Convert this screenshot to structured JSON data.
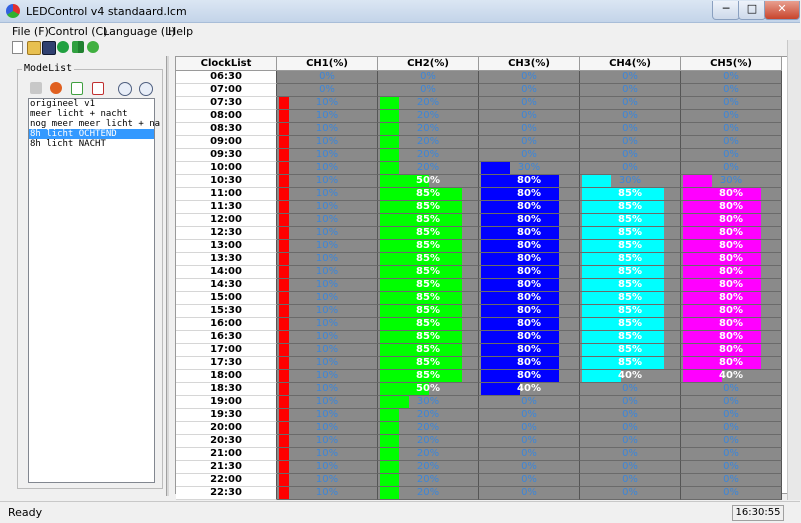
{
  "window": {
    "title": "LEDControl v4 standaard.lcm",
    "min_label": "─",
    "max_label": "□",
    "close_label": "✕"
  },
  "menu": {
    "items": [
      "File (F)",
      "Control (C)",
      "Language (L)",
      "Help"
    ]
  },
  "toolbar": {
    "icons": [
      "new-icon",
      "open-icon",
      "save-icon",
      "play-icon",
      "sync-icon",
      "info-icon"
    ]
  },
  "modelist": {
    "label": "ModeList",
    "buttons": [
      "copy-icon",
      "delete-icon",
      "import-icon",
      "export-icon",
      "move-up-icon",
      "move-down-icon"
    ],
    "items": [
      "origineel v1",
      "meer licht + nacht",
      "nog meer meer licht + na",
      "8h licht OCHTEND",
      "8h licht NACHT"
    ],
    "selected_index": 3
  },
  "grid": {
    "time_header": "ClockList",
    "channels": [
      {
        "name": "CH1(%)",
        "color": "#ff0000"
      },
      {
        "name": "CH2(%)",
        "color": "#00ff00"
      },
      {
        "name": "CH3(%)",
        "color": "#0000ff"
      },
      {
        "name": "CH4(%)",
        "color": "#00ffff"
      },
      {
        "name": "CH5(%)",
        "color": "#ff00ff"
      }
    ],
    "rows": [
      {
        "time": "06:30",
        "cells": [
          {
            "v": 0,
            "t": "0%"
          },
          {
            "v": 0,
            "t": "0%"
          },
          {
            "v": 0,
            "t": "0%"
          },
          {
            "v": 0,
            "t": "0%"
          },
          {
            "v": 0,
            "t": "0%"
          }
        ]
      },
      {
        "time": "07:00",
        "cells": [
          {
            "v": 0,
            "t": "0%"
          },
          {
            "v": 0,
            "t": "0%"
          },
          {
            "v": 0,
            "t": "0%"
          },
          {
            "v": 0,
            "t": "0%"
          },
          {
            "v": 0,
            "t": "0%"
          }
        ]
      },
      {
        "time": "07:30",
        "cells": [
          {
            "v": 10,
            "t": "10%"
          },
          {
            "v": 20,
            "t": "20%"
          },
          {
            "v": 0,
            "t": "0%"
          },
          {
            "v": 0,
            "t": "0%"
          },
          {
            "v": 0,
            "t": "0%"
          }
        ]
      },
      {
        "time": "08:00",
        "cells": [
          {
            "v": 10,
            "t": "10%"
          },
          {
            "v": 20,
            "t": "20%"
          },
          {
            "v": 0,
            "t": "0%"
          },
          {
            "v": 0,
            "t": "0%"
          },
          {
            "v": 0,
            "t": "0%"
          }
        ]
      },
      {
        "time": "08:30",
        "cells": [
          {
            "v": 10,
            "t": "10%"
          },
          {
            "v": 20,
            "t": "20%"
          },
          {
            "v": 0,
            "t": "0%"
          },
          {
            "v": 0,
            "t": "0%"
          },
          {
            "v": 0,
            "t": "0%"
          }
        ]
      },
      {
        "time": "09:00",
        "cells": [
          {
            "v": 10,
            "t": "10%"
          },
          {
            "v": 20,
            "t": "20%"
          },
          {
            "v": 0,
            "t": "0%"
          },
          {
            "v": 0,
            "t": "0%"
          },
          {
            "v": 0,
            "t": "0%"
          }
        ]
      },
      {
        "time": "09:30",
        "cells": [
          {
            "v": 10,
            "t": "10%"
          },
          {
            "v": 20,
            "t": "20%"
          },
          {
            "v": 0,
            "t": "0%"
          },
          {
            "v": 0,
            "t": "0%"
          },
          {
            "v": 0,
            "t": "0%"
          }
        ]
      },
      {
        "time": "10:00",
        "cells": [
          {
            "v": 10,
            "t": "10%"
          },
          {
            "v": 20,
            "t": "20%"
          },
          {
            "v": 30,
            "t": "30%"
          },
          {
            "v": 0,
            "t": "0%"
          },
          {
            "v": 0,
            "t": "0%"
          }
        ]
      },
      {
        "time": "10:30",
        "cells": [
          {
            "v": 10,
            "t": "10%"
          },
          {
            "v": 50,
            "t": "50%"
          },
          {
            "v": 80,
            "t": "80%"
          },
          {
            "v": 30,
            "t": "30%"
          },
          {
            "v": 30,
            "t": "30%"
          }
        ]
      },
      {
        "time": "11:00",
        "cells": [
          {
            "v": 10,
            "t": "10%"
          },
          {
            "v": 85,
            "t": "85%"
          },
          {
            "v": 80,
            "t": "80%"
          },
          {
            "v": 85,
            "t": "85%"
          },
          {
            "v": 80,
            "t": "80%"
          }
        ]
      },
      {
        "time": "11:30",
        "cells": [
          {
            "v": 10,
            "t": "10%"
          },
          {
            "v": 85,
            "t": "85%"
          },
          {
            "v": 80,
            "t": "80%"
          },
          {
            "v": 85,
            "t": "85%"
          },
          {
            "v": 80,
            "t": "80%"
          }
        ]
      },
      {
        "time": "12:00",
        "cells": [
          {
            "v": 10,
            "t": "10%"
          },
          {
            "v": 85,
            "t": "85%"
          },
          {
            "v": 80,
            "t": "80%"
          },
          {
            "v": 85,
            "t": "85%"
          },
          {
            "v": 80,
            "t": "80%"
          }
        ]
      },
      {
        "time": "12:30",
        "cells": [
          {
            "v": 10,
            "t": "10%"
          },
          {
            "v": 85,
            "t": "85%"
          },
          {
            "v": 80,
            "t": "80%"
          },
          {
            "v": 85,
            "t": "85%"
          },
          {
            "v": 80,
            "t": "80%"
          }
        ]
      },
      {
        "time": "13:00",
        "cells": [
          {
            "v": 10,
            "t": "10%"
          },
          {
            "v": 85,
            "t": "85%"
          },
          {
            "v": 80,
            "t": "80%"
          },
          {
            "v": 85,
            "t": "85%"
          },
          {
            "v": 80,
            "t": "80%"
          }
        ]
      },
      {
        "time": "13:30",
        "cells": [
          {
            "v": 10,
            "t": "10%"
          },
          {
            "v": 85,
            "t": "85%"
          },
          {
            "v": 80,
            "t": "80%"
          },
          {
            "v": 85,
            "t": "85%"
          },
          {
            "v": 80,
            "t": "80%"
          }
        ]
      },
      {
        "time": "14:00",
        "cells": [
          {
            "v": 10,
            "t": "10%"
          },
          {
            "v": 85,
            "t": "85%"
          },
          {
            "v": 80,
            "t": "80%"
          },
          {
            "v": 85,
            "t": "85%"
          },
          {
            "v": 80,
            "t": "80%"
          }
        ]
      },
      {
        "time": "14:30",
        "cells": [
          {
            "v": 10,
            "t": "10%"
          },
          {
            "v": 85,
            "t": "85%"
          },
          {
            "v": 80,
            "t": "80%"
          },
          {
            "v": 85,
            "t": "85%"
          },
          {
            "v": 80,
            "t": "80%"
          }
        ]
      },
      {
        "time": "15:00",
        "cells": [
          {
            "v": 10,
            "t": "10%"
          },
          {
            "v": 85,
            "t": "85%"
          },
          {
            "v": 80,
            "t": "80%"
          },
          {
            "v": 85,
            "t": "85%"
          },
          {
            "v": 80,
            "t": "80%"
          }
        ]
      },
      {
        "time": "15:30",
        "cells": [
          {
            "v": 10,
            "t": "10%"
          },
          {
            "v": 85,
            "t": "85%"
          },
          {
            "v": 80,
            "t": "80%"
          },
          {
            "v": 85,
            "t": "85%"
          },
          {
            "v": 80,
            "t": "80%"
          }
        ]
      },
      {
        "time": "16:00",
        "cells": [
          {
            "v": 10,
            "t": "10%"
          },
          {
            "v": 85,
            "t": "85%"
          },
          {
            "v": 80,
            "t": "80%"
          },
          {
            "v": 85,
            "t": "85%"
          },
          {
            "v": 80,
            "t": "80%"
          }
        ]
      },
      {
        "time": "16:30",
        "cells": [
          {
            "v": 10,
            "t": "10%"
          },
          {
            "v": 85,
            "t": "85%"
          },
          {
            "v": 80,
            "t": "80%"
          },
          {
            "v": 85,
            "t": "85%"
          },
          {
            "v": 80,
            "t": "80%"
          }
        ]
      },
      {
        "time": "17:00",
        "cells": [
          {
            "v": 10,
            "t": "10%"
          },
          {
            "v": 85,
            "t": "85%"
          },
          {
            "v": 80,
            "t": "80%"
          },
          {
            "v": 85,
            "t": "85%"
          },
          {
            "v": 80,
            "t": "80%"
          }
        ]
      },
      {
        "time": "17:30",
        "cells": [
          {
            "v": 10,
            "t": "10%"
          },
          {
            "v": 85,
            "t": "85%"
          },
          {
            "v": 80,
            "t": "80%"
          },
          {
            "v": 85,
            "t": "85%"
          },
          {
            "v": 80,
            "t": "80%"
          }
        ]
      },
      {
        "time": "18:00",
        "cells": [
          {
            "v": 10,
            "t": "10%"
          },
          {
            "v": 85,
            "t": "85%"
          },
          {
            "v": 80,
            "t": "80%"
          },
          {
            "v": 40,
            "t": "40%"
          },
          {
            "v": 40,
            "t": "40%"
          }
        ]
      },
      {
        "time": "18:30",
        "cells": [
          {
            "v": 10,
            "t": "10%"
          },
          {
            "v": 50,
            "t": "50%"
          },
          {
            "v": 40,
            "t": "40%"
          },
          {
            "v": 0,
            "t": "0%"
          },
          {
            "v": 0,
            "t": "0%"
          }
        ]
      },
      {
        "time": "19:00",
        "cells": [
          {
            "v": 10,
            "t": "10%"
          },
          {
            "v": 30,
            "t": "30%"
          },
          {
            "v": 0,
            "t": "0%"
          },
          {
            "v": 0,
            "t": "0%"
          },
          {
            "v": 0,
            "t": "0%"
          }
        ]
      },
      {
        "time": "19:30",
        "cells": [
          {
            "v": 10,
            "t": "10%"
          },
          {
            "v": 20,
            "t": "20%"
          },
          {
            "v": 0,
            "t": "0%"
          },
          {
            "v": 0,
            "t": "0%"
          },
          {
            "v": 0,
            "t": "0%"
          }
        ]
      },
      {
        "time": "20:00",
        "cells": [
          {
            "v": 10,
            "t": "10%"
          },
          {
            "v": 20,
            "t": "20%"
          },
          {
            "v": 0,
            "t": "0%"
          },
          {
            "v": 0,
            "t": "0%"
          },
          {
            "v": 0,
            "t": "0%"
          }
        ]
      },
      {
        "time": "20:30",
        "cells": [
          {
            "v": 10,
            "t": "10%"
          },
          {
            "v": 20,
            "t": "20%"
          },
          {
            "v": 0,
            "t": "0%"
          },
          {
            "v": 0,
            "t": "0%"
          },
          {
            "v": 0,
            "t": "0%"
          }
        ]
      },
      {
        "time": "21:00",
        "cells": [
          {
            "v": 10,
            "t": "10%"
          },
          {
            "v": 20,
            "t": "20%"
          },
          {
            "v": 0,
            "t": "0%"
          },
          {
            "v": 0,
            "t": "0%"
          },
          {
            "v": 0,
            "t": "0%"
          }
        ]
      },
      {
        "time": "21:30",
        "cells": [
          {
            "v": 10,
            "t": "10%"
          },
          {
            "v": 20,
            "t": "20%"
          },
          {
            "v": 0,
            "t": "0%"
          },
          {
            "v": 0,
            "t": "0%"
          },
          {
            "v": 0,
            "t": "0%"
          }
        ]
      },
      {
        "time": "22:00",
        "cells": [
          {
            "v": 10,
            "t": "10%"
          },
          {
            "v": 20,
            "t": "20%"
          },
          {
            "v": 0,
            "t": "0%"
          },
          {
            "v": 0,
            "t": "0%"
          },
          {
            "v": 0,
            "t": "0%"
          }
        ]
      },
      {
        "time": "22:30",
        "cells": [
          {
            "v": 10,
            "t": "10%"
          },
          {
            "v": 20,
            "t": "20%"
          },
          {
            "v": 0,
            "t": "0%"
          },
          {
            "v": 0,
            "t": "0%"
          },
          {
            "v": 0,
            "t": "0%"
          }
        ]
      }
    ]
  },
  "status": {
    "text": "Ready",
    "time": "16:30:55"
  }
}
